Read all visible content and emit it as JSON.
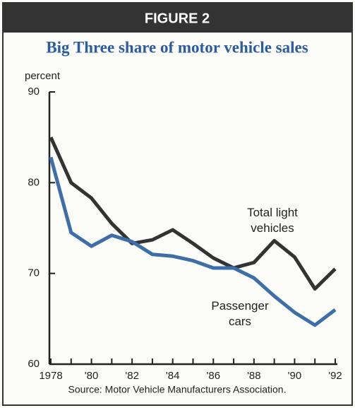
{
  "chart_data": {
    "type": "line",
    "header": "FIGURE 2",
    "title": "Big Three share of motor vehicle sales",
    "y_label": "percent",
    "source": "Source: Motor Vehicle Manufacturers Association.",
    "x": [
      1978,
      1979,
      1980,
      1981,
      1982,
      1983,
      1984,
      1985,
      1986,
      1987,
      1988,
      1989,
      1990,
      1991,
      1992
    ],
    "series": [
      {
        "name": "Total light vehicles",
        "color": "#333333",
        "values": [
          85.0,
          80.0,
          78.3,
          75.5,
          73.3,
          73.7,
          74.8,
          73.3,
          71.7,
          70.6,
          71.2,
          73.6,
          71.8,
          68.3,
          70.5
        ]
      },
      {
        "name": "Passenger cars",
        "color": "#3d6ea8",
        "values": [
          82.8,
          74.5,
          73.0,
          74.2,
          73.5,
          72.1,
          71.9,
          71.4,
          70.6,
          70.6,
          69.5,
          67.5,
          65.7,
          64.3,
          66.0
        ]
      }
    ],
    "xlim": [
      1978,
      1992
    ],
    "xticks": [
      {
        "value": 1978,
        "label": "1978"
      },
      {
        "value": 1980,
        "label": "'80"
      },
      {
        "value": 1982,
        "label": "'82"
      },
      {
        "value": 1984,
        "label": "'84"
      },
      {
        "value": 1986,
        "label": "'86"
      },
      {
        "value": 1988,
        "label": "'88"
      },
      {
        "value": 1990,
        "label": "'90"
      },
      {
        "value": 1992,
        "label": "'92"
      }
    ],
    "xminorticks": [
      1979,
      1981,
      1983,
      1985,
      1987,
      1989,
      1991
    ],
    "ylim": [
      60,
      90
    ],
    "yticks": [
      60,
      70,
      80,
      90
    ],
    "grid": false
  }
}
